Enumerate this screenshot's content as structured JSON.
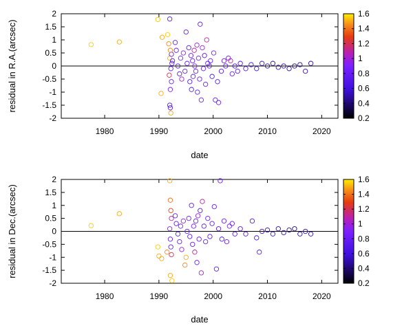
{
  "chart_data": [
    {
      "type": "scatter",
      "title": "",
      "xlabel": "date",
      "ylabel": "residual in R.A.(arcsec)",
      "xlim": [
        1972,
        2023
      ],
      "ylim": [
        -2,
        2
      ],
      "xticks": [
        "1980",
        "1990",
        "2000",
        "2010",
        "2020"
      ],
      "yticks": [
        "2",
        "1.5",
        "1",
        "0.5",
        "0",
        "-0.5",
        "-1",
        "-1.5",
        "-2"
      ],
      "reference_line_y": 0,
      "grid": false,
      "colorbar": {
        "range": [
          0.2,
          1.6
        ],
        "ticks": [
          "1.6",
          "1.4",
          "1.2",
          "1",
          "0.8",
          "0.6",
          "0.4",
          "0.2"
        ]
      },
      "points": [
        [
          1977.5,
          0.82,
          1.55
        ],
        [
          1982.7,
          0.92,
          1.5
        ],
        [
          1989.8,
          1.78,
          1.55
        ],
        [
          1990.6,
          1.1,
          1.5
        ],
        [
          1990.4,
          -1.05,
          1.5
        ],
        [
          1991.6,
          1.2,
          1.55
        ],
        [
          1991.8,
          0.85,
          1.45
        ],
        [
          1992.0,
          0.3,
          1.5
        ],
        [
          1991.9,
          -0.35,
          1.2
        ],
        [
          1992.1,
          -0.9,
          0.9
        ],
        [
          1992.0,
          -1.5,
          0.7
        ],
        [
          1992.1,
          -1.6,
          0.7
        ],
        [
          1992.2,
          -1.8,
          1.5
        ],
        [
          1992.0,
          1.8,
          0.7
        ],
        [
          1992.3,
          0.45,
          0.8
        ],
        [
          1992.2,
          -0.1,
          0.75
        ],
        [
          1992.4,
          0.1,
          0.8
        ],
        [
          1992.1,
          0.6,
          1.45
        ],
        [
          1992.3,
          -0.6,
          0.8
        ],
        [
          1992.5,
          0.2,
          0.7
        ],
        [
          1993.0,
          0.9,
          0.8
        ],
        [
          1993.2,
          0.6,
          0.8
        ],
        [
          1993.5,
          0.0,
          0.7
        ],
        [
          1993.8,
          -0.3,
          0.7
        ],
        [
          1994.0,
          0.3,
          0.9
        ],
        [
          1994.2,
          -0.5,
          1.0
        ],
        [
          1994.5,
          0.5,
          1.0
        ],
        [
          1994.8,
          -0.2,
          0.8
        ],
        [
          1995.0,
          1.3,
          0.8
        ],
        [
          1995.2,
          0.1,
          0.8
        ],
        [
          1995.5,
          0.7,
          0.75
        ],
        [
          1995.7,
          -0.6,
          0.7
        ],
        [
          1995.9,
          0.4,
          0.8
        ],
        [
          1996.0,
          -0.9,
          0.7
        ],
        [
          1996.2,
          0.2,
          0.8
        ],
        [
          1996.3,
          -0.4,
          0.8
        ],
        [
          1996.5,
          0.6,
          1.1
        ],
        [
          1996.6,
          0.0,
          0.9
        ],
        [
          1996.8,
          -0.2,
          0.8
        ],
        [
          1997.0,
          0.8,
          1.0
        ],
        [
          1997.1,
          -1.0,
          0.8
        ],
        [
          1997.3,
          0.3,
          0.9
        ],
        [
          1997.5,
          -0.5,
          0.8
        ],
        [
          1997.6,
          1.6,
          0.8
        ],
        [
          1997.8,
          -1.3,
          0.85
        ],
        [
          1998.0,
          0.7,
          1.0
        ],
        [
          1998.2,
          -0.1,
          0.8
        ],
        [
          1998.4,
          0.4,
          0.7
        ],
        [
          1998.6,
          -0.7,
          0.8
        ],
        [
          1998.8,
          1.0,
          1.1
        ],
        [
          1999.0,
          0.1,
          0.8
        ],
        [
          1999.3,
          0.0,
          0.75
        ],
        [
          1999.5,
          0.2,
          0.8
        ],
        [
          1999.8,
          -0.4,
          0.7
        ],
        [
          2000.1,
          0.5,
          0.9
        ],
        [
          2000.4,
          -1.3,
          0.8
        ],
        [
          2000.8,
          -0.6,
          0.7
        ],
        [
          2001.0,
          -1.4,
          0.8
        ],
        [
          2001.5,
          -0.2,
          0.7
        ],
        [
          2002.0,
          0.2,
          0.8
        ],
        [
          2002.3,
          0.0,
          0.75
        ],
        [
          2002.8,
          0.3,
          0.8
        ],
        [
          2003.2,
          0.2,
          1.1
        ],
        [
          2003.5,
          -0.3,
          0.8
        ],
        [
          2004.0,
          0.0,
          0.7
        ],
        [
          2004.5,
          -0.2,
          0.7
        ],
        [
          2005.0,
          0.1,
          0.7
        ],
        [
          2006.0,
          -0.1,
          0.7
        ],
        [
          2007.0,
          0.05,
          0.6
        ],
        [
          2008.0,
          -0.1,
          0.6
        ],
        [
          2009.0,
          0.1,
          0.6
        ],
        [
          2010.0,
          0.0,
          0.5
        ],
        [
          2011.0,
          0.1,
          0.5
        ],
        [
          2012.0,
          -0.05,
          0.5
        ],
        [
          2013.0,
          0.0,
          0.5
        ],
        [
          2014.0,
          -0.1,
          0.45
        ],
        [
          2015.0,
          0.0,
          0.4
        ],
        [
          2016.0,
          0.05,
          0.45
        ],
        [
          2017.0,
          -0.2,
          0.5
        ],
        [
          2018.0,
          0.1,
          0.5
        ]
      ]
    },
    {
      "type": "scatter",
      "title": "",
      "xlabel": "date",
      "ylabel": "residual in Dec.(arcsec)",
      "xlim": [
        1972,
        2023
      ],
      "ylim": [
        -2,
        2
      ],
      "xticks": [
        "1980",
        "1990",
        "2000",
        "2010",
        "2020"
      ],
      "yticks": [
        "2",
        "1.5",
        "1",
        "0.5",
        "0",
        "-0.5",
        "-1",
        "-1.5",
        "-2"
      ],
      "reference_line_y": 0,
      "grid": false,
      "colorbar": {
        "range": [
          0.2,
          1.6
        ],
        "ticks": [
          "1.6",
          "1.4",
          "1.2",
          "1",
          "0.8",
          "0.6",
          "0.4",
          "0.2"
        ]
      },
      "points": [
        [
          1977.5,
          0.22,
          1.55
        ],
        [
          1982.7,
          0.68,
          1.5
        ],
        [
          1989.8,
          -0.6,
          1.55
        ],
        [
          1990.0,
          -0.95,
          1.5
        ],
        [
          1990.5,
          -1.05,
          1.5
        ],
        [
          1991.5,
          -0.8,
          1.45
        ],
        [
          1992.0,
          1.95,
          1.5
        ],
        [
          1992.1,
          1.2,
          1.4
        ],
        [
          1992.2,
          0.8,
          1.3
        ],
        [
          1992.3,
          0.5,
          1.1
        ],
        [
          1992.0,
          0.1,
          0.9
        ],
        [
          1992.1,
          -0.3,
          0.8
        ],
        [
          1992.2,
          -0.6,
          0.8
        ],
        [
          1992.3,
          -0.9,
          1.2
        ],
        [
          1992.1,
          -1.7,
          1.5
        ],
        [
          1992.4,
          -1.9,
          1.55
        ],
        [
          1993.0,
          0.6,
          0.8
        ],
        [
          1993.2,
          0.3,
          0.8
        ],
        [
          1993.5,
          -0.1,
          0.7
        ],
        [
          1993.8,
          -0.4,
          0.8
        ],
        [
          1994.0,
          0.2,
          0.9
        ],
        [
          1994.2,
          -0.7,
          1.0
        ],
        [
          1994.5,
          0.4,
          1.0
        ],
        [
          1994.8,
          -1.3,
          1.45
        ],
        [
          1995.0,
          -1.0,
          1.5
        ],
        [
          1995.2,
          0.0,
          0.8
        ],
        [
          1995.5,
          0.5,
          0.8
        ],
        [
          1995.7,
          -0.2,
          0.7
        ],
        [
          1996.0,
          1.0,
          0.75
        ],
        [
          1996.2,
          -0.5,
          0.8
        ],
        [
          1996.4,
          0.2,
          0.9
        ],
        [
          1996.6,
          -0.8,
          1.1
        ],
        [
          1996.8,
          0.4,
          0.8
        ],
        [
          1997.0,
          -1.2,
          0.8
        ],
        [
          1997.2,
          0.6,
          1.0
        ],
        [
          1997.4,
          -0.3,
          0.8
        ],
        [
          1997.6,
          0.8,
          0.7
        ],
        [
          1997.8,
          -1.6,
          1.0
        ],
        [
          1998.0,
          1.15,
          1.1
        ],
        [
          1998.3,
          0.2,
          0.8
        ],
        [
          1998.6,
          -0.4,
          0.8
        ],
        [
          1999.0,
          0.5,
          0.8
        ],
        [
          1999.4,
          -0.2,
          0.7
        ],
        [
          1999.8,
          0.3,
          0.8
        ],
        [
          2000.2,
          0.95,
          0.8
        ],
        [
          2000.6,
          -1.45,
          0.8
        ],
        [
          2001.0,
          0.1,
          0.7
        ],
        [
          2001.3,
          1.95,
          0.8
        ],
        [
          2001.6,
          -0.3,
          0.7
        ],
        [
          2002.0,
          0.4,
          0.8
        ],
        [
          2002.5,
          -0.4,
          0.8
        ],
        [
          2003.0,
          0.2,
          0.9
        ],
        [
          2003.5,
          0.3,
          0.8
        ],
        [
          2004.0,
          -0.1,
          0.7
        ],
        [
          2005.0,
          0.1,
          0.7
        ],
        [
          2006.0,
          -0.1,
          0.7
        ],
        [
          2007.2,
          0.4,
          0.7
        ],
        [
          2008.0,
          -0.25,
          0.65
        ],
        [
          2008.5,
          -0.8,
          0.75
        ],
        [
          2009.0,
          0.0,
          0.6
        ],
        [
          2010.0,
          0.05,
          0.55
        ],
        [
          2011.0,
          -0.1,
          0.55
        ],
        [
          2012.0,
          0.1,
          0.5
        ],
        [
          2013.0,
          -0.05,
          0.5
        ],
        [
          2014.0,
          0.05,
          0.45
        ],
        [
          2015.0,
          0.1,
          0.4
        ],
        [
          2016.0,
          -0.1,
          0.45
        ],
        [
          2017.0,
          0.0,
          0.5
        ],
        [
          2018.0,
          -0.1,
          0.5
        ]
      ]
    }
  ]
}
